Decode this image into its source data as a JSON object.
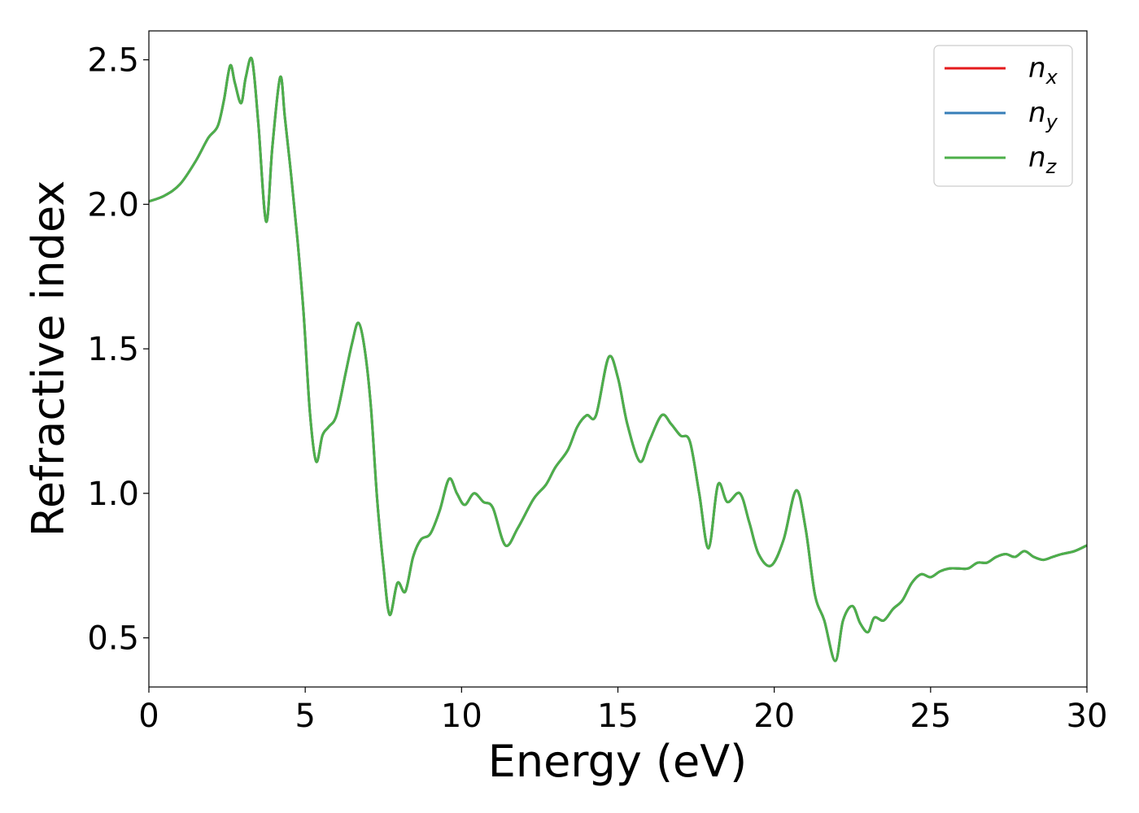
{
  "chart_data": {
    "type": "line",
    "title": "",
    "xlabel": "Energy (eV)",
    "ylabel": "Refractive index",
    "xlim": [
      0,
      30
    ],
    "ylim": [
      0.33,
      2.6
    ],
    "xticks": [
      0,
      5,
      10,
      15,
      20,
      25,
      30
    ],
    "xtick_labels": [
      "0",
      "5",
      "10",
      "15",
      "20",
      "25",
      "30"
    ],
    "yticks": [
      0.5,
      1.0,
      1.5,
      2.0,
      2.5
    ],
    "ytick_labels": [
      "0.5",
      "1.0",
      "1.5",
      "2.0",
      "2.5"
    ],
    "grid": false,
    "legend_position": "top-right",
    "series": [
      {
        "name_base": "n",
        "name_sub": "x",
        "color": "#e41a1c"
      },
      {
        "name_base": "n",
        "name_sub": "y",
        "color": "#377eb8"
      },
      {
        "name_base": "n",
        "name_sub": "z",
        "color": "#4daf4a"
      }
    ],
    "x": [
      0,
      0.5,
      1.0,
      1.5,
      1.9,
      2.2,
      2.4,
      2.6,
      2.75,
      2.95,
      3.1,
      3.3,
      3.5,
      3.75,
      3.95,
      4.2,
      4.35,
      4.55,
      4.75,
      4.95,
      5.15,
      5.35,
      5.55,
      5.75,
      6.0,
      6.3,
      6.5,
      6.7,
      6.9,
      7.1,
      7.3,
      7.5,
      7.7,
      7.95,
      8.2,
      8.45,
      8.7,
      9.0,
      9.3,
      9.6,
      9.85,
      10.1,
      10.4,
      10.7,
      11.0,
      11.4,
      11.8,
      12.3,
      12.7,
      13.0,
      13.4,
      13.7,
      14.0,
      14.3,
      14.7,
      15.0,
      15.3,
      15.7,
      16.0,
      16.4,
      16.7,
      17.0,
      17.3,
      17.6,
      17.9,
      18.2,
      18.5,
      18.9,
      19.2,
      19.5,
      19.9,
      20.3,
      20.7,
      21.0,
      21.3,
      21.6,
      21.95,
      22.2,
      22.5,
      22.75,
      23.0,
      23.2,
      23.5,
      23.8,
      24.1,
      24.4,
      24.7,
      25.0,
      25.3,
      25.6,
      25.9,
      26.2,
      26.5,
      26.8,
      27.1,
      27.4,
      27.7,
      28.0,
      28.3,
      28.6,
      28.9,
      29.2,
      29.6,
      30.0
    ],
    "y": [
      2.01,
      2.03,
      2.07,
      2.15,
      2.23,
      2.27,
      2.36,
      2.48,
      2.42,
      2.35,
      2.44,
      2.5,
      2.28,
      1.94,
      2.2,
      2.44,
      2.3,
      2.1,
      1.88,
      1.62,
      1.28,
      1.11,
      1.2,
      1.23,
      1.27,
      1.42,
      1.52,
      1.59,
      1.5,
      1.3,
      0.98,
      0.75,
      0.58,
      0.69,
      0.66,
      0.78,
      0.84,
      0.86,
      0.94,
      1.05,
      1.0,
      0.96,
      1.0,
      0.97,
      0.95,
      0.82,
      0.88,
      0.98,
      1.03,
      1.09,
      1.15,
      1.23,
      1.27,
      1.27,
      1.47,
      1.4,
      1.24,
      1.11,
      1.18,
      1.27,
      1.24,
      1.2,
      1.18,
      1.0,
      0.81,
      1.03,
      0.97,
      1.0,
      0.9,
      0.79,
      0.75,
      0.84,
      1.01,
      0.88,
      0.65,
      0.56,
      0.42,
      0.56,
      0.61,
      0.55,
      0.52,
      0.57,
      0.56,
      0.6,
      0.63,
      0.69,
      0.72,
      0.71,
      0.73,
      0.74,
      0.74,
      0.74,
      0.76,
      0.76,
      0.78,
      0.79,
      0.78,
      0.8,
      0.78,
      0.77,
      0.78,
      0.79,
      0.8,
      0.82
    ]
  }
}
